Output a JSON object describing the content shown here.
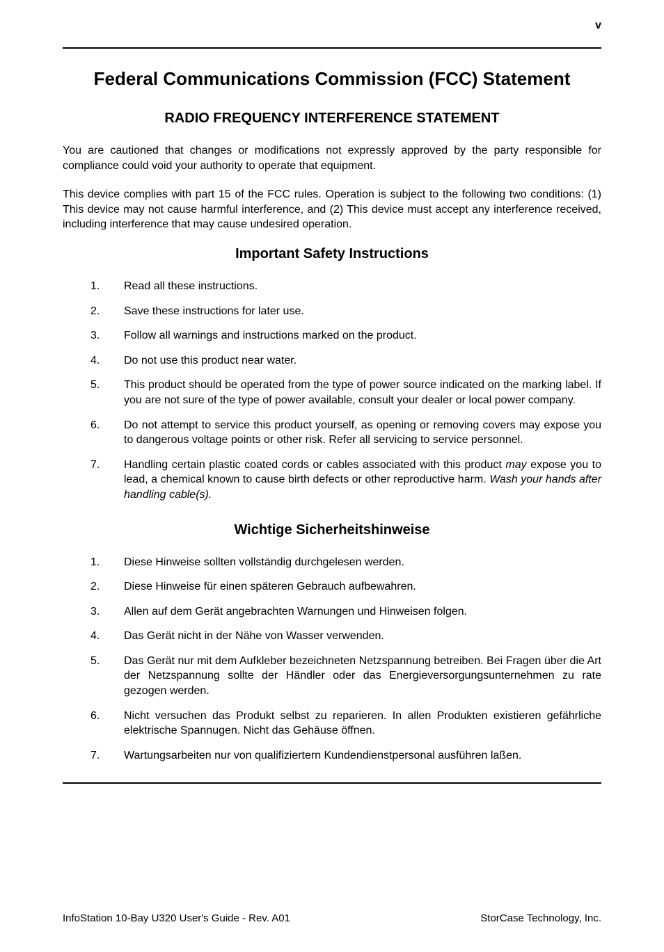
{
  "page": {
    "number": "v",
    "footer_left": "InfoStation 10-Bay U320 User's Guide  -  Rev. A01",
    "footer_right": "StorCase Technology, Inc."
  },
  "title": "Federal Communications Commission (FCC) Statement",
  "section1": {
    "heading": "RADIO FREQUENCY INTERFERENCE STATEMENT",
    "para1": "You are cautioned that changes or modifications not expressly approved by the party responsible for compliance could void your authority to operate that equipment.",
    "para2": "This device complies with part 15 of the FCC rules.  Operation is subject to the following two conditions: (1) This device may not cause harmful interference, and (2) This device must accept any interference received, including interference that may cause undesired operation."
  },
  "section2": {
    "heading": "Important Safety Instructions",
    "items": [
      "Read all these instructions.",
      "Save these instructions for later use.",
      "Follow all warnings and instructions marked on the product.",
      "Do not use this product near water.",
      "This product should be operated from the type of power source indicated on the marking label.   If you are not sure of the type of power available, consult your dealer or local power company.",
      "Do not attempt to service this product yourself, as opening or removing covers may expose you to dangerous voltage points or other risk.   Refer all servicing to service personnel."
    ],
    "item7_before": "Handling certain plastic coated cords or cables associated with this product ",
    "item7_italic1": "may",
    "item7_mid": " expose you to lead, a chemical known to cause birth defects or other reproductive harm.  ",
    "item7_italic2": "Wash your hands after handling cable(s)."
  },
  "section3": {
    "heading": "Wichtige Sicherheitshinweise",
    "items": [
      "Diese Hinweise sollten vollständig durchgelesen werden.",
      "Diese Hinweise für einen späteren Gebrauch aufbewahren.",
      "Allen auf dem Gerät angebrachten Warnungen und Hinweisen folgen.",
      "Das Gerät nicht in der Nähe von Wasser verwenden.",
      "Das Gerät nur mit dem Aufkleber bezeichneten Netzspannung betreiben. Bei Fragen über die Art der Netzspannung sollte der Händler oder das Energieversorgungsunternehmen zu rate gezogen werden.",
      "Nicht versuchen das Produkt selbst zu reparieren. In allen Produkten existieren gefährliche elektrische Spannugen. Nicht das Gehäuse öffnen.",
      "Wartungsarbeiten nur von qualifiziertern Kundendienstpersonal ausführen laßen."
    ]
  }
}
